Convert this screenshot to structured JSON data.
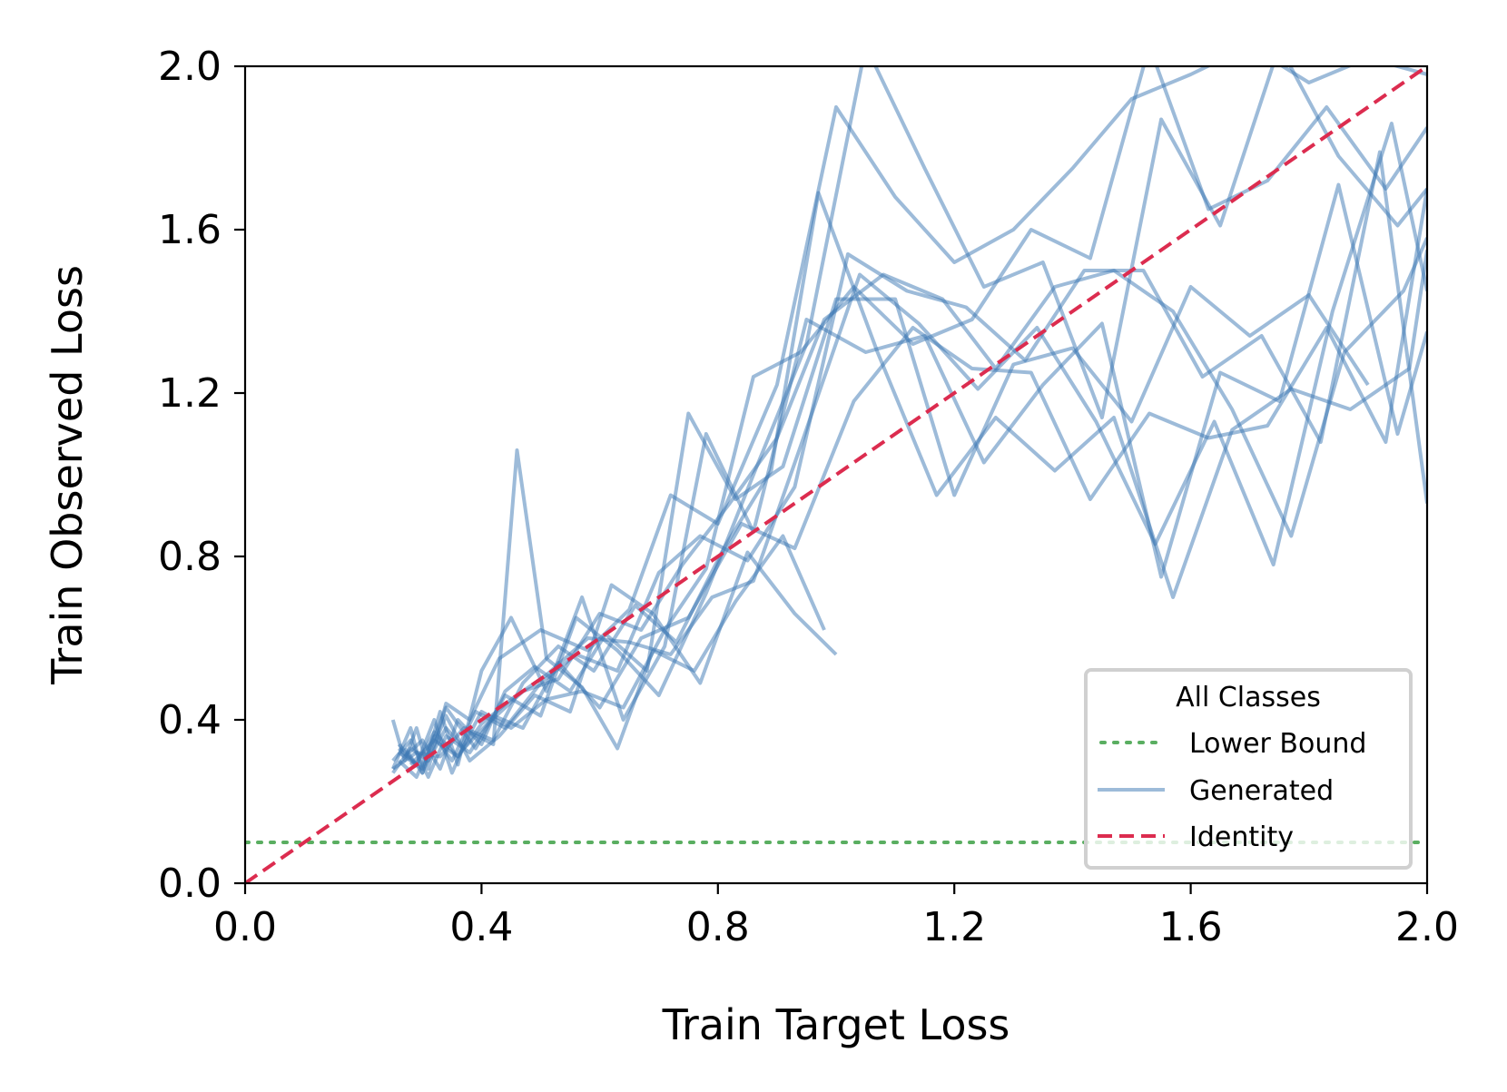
{
  "chart_data": {
    "type": "line",
    "title": "",
    "xlabel": "Train Target Loss",
    "ylabel": "Train Observed Loss",
    "xlim": [
      0,
      2
    ],
    "ylim": [
      0,
      2
    ],
    "xticks": [
      "0.0",
      "0.4",
      "0.8",
      "1.2",
      "1.6",
      "2.0"
    ],
    "yticks": [
      "0.0",
      "0.4",
      "0.8",
      "1.2",
      "1.6",
      "2.0"
    ],
    "xtick_values": [
      0,
      0.4,
      0.8,
      1.2,
      1.6,
      2.0
    ],
    "ytick_values": [
      0,
      0.4,
      0.8,
      1.2,
      1.6,
      2.0
    ],
    "grid": false,
    "legend": {
      "title": "All Classes",
      "placement": "lower-right",
      "entries": [
        {
          "label": "Lower Bound",
          "style": "dotted",
          "color": "#5aae61"
        },
        {
          "label": "Generated",
          "style": "solid",
          "color": "#8fb3d6"
        },
        {
          "label": "Identity",
          "style": "dashed",
          "color": "#dc2c4f"
        }
      ]
    },
    "colors": {
      "generated": "#3c78b4",
      "identity": "#dc2c4f",
      "lower_bound": "#5aae61"
    },
    "lower_bound": 0.1,
    "identity": {
      "x": [
        0,
        2
      ],
      "y": [
        0,
        2
      ]
    },
    "series": [
      {
        "x": [
          0.25,
          0.27,
          0.29,
          0.31,
          0.34,
          0.38,
          0.43,
          0.5,
          0.58,
          0.65,
          0.72,
          0.8,
          0.9,
          1.0,
          1.1,
          1.2,
          1.3,
          1.4,
          1.5,
          1.6,
          1.7,
          1.8,
          1.9,
          2.0
        ],
        "y": [
          0.4,
          0.3,
          0.38,
          0.28,
          0.44,
          0.4,
          0.55,
          0.62,
          0.57,
          0.67,
          0.95,
          0.88,
          1.22,
          1.9,
          1.68,
          1.52,
          1.6,
          1.75,
          1.92,
          1.98,
          2.05,
          1.96,
          2.02,
          1.98
        ]
      },
      {
        "x": [
          0.25,
          0.28,
          0.31,
          0.34,
          0.37,
          0.41,
          0.47,
          0.53,
          0.6,
          0.67,
          0.74,
          0.82,
          0.9,
          0.98,
          1.08,
          1.18,
          1.27,
          1.37,
          1.47,
          1.57,
          1.67,
          1.77,
          1.86,
          1.96,
          2.0
        ],
        "y": [
          0.27,
          0.33,
          0.3,
          0.38,
          0.33,
          0.39,
          0.47,
          0.5,
          0.66,
          0.62,
          0.78,
          0.93,
          1.09,
          1.38,
          1.49,
          1.43,
          1.26,
          1.46,
          1.5,
          1.4,
          1.16,
          0.85,
          1.3,
          1.45,
          1.58
        ]
      },
      {
        "x": [
          0.26,
          0.29,
          0.32,
          0.35,
          0.39,
          0.44,
          0.5,
          0.56,
          0.63,
          0.7,
          0.77,
          0.85,
          0.93,
          1.02,
          1.12,
          1.22,
          1.32,
          1.42,
          1.52,
          1.62,
          1.72,
          1.82,
          1.92,
          2.0
        ],
        "y": [
          0.3,
          0.26,
          0.36,
          0.3,
          0.42,
          0.38,
          0.49,
          0.56,
          0.52,
          0.76,
          0.85,
          0.79,
          0.97,
          1.54,
          1.45,
          1.41,
          1.28,
          1.5,
          1.5,
          1.24,
          1.34,
          1.08,
          1.79,
          0.93
        ]
      },
      {
        "x": [
          0.25,
          0.28,
          0.3,
          0.33,
          0.36,
          0.4,
          0.45,
          0.51,
          0.57,
          0.64,
          0.71,
          0.78,
          0.86,
          0.95,
          1.05,
          1.15,
          1.25,
          1.35,
          1.45,
          1.55,
          1.65,
          1.75,
          1.85,
          1.95,
          2.0
        ],
        "y": [
          0.28,
          0.38,
          0.27,
          0.42,
          0.29,
          0.52,
          0.65,
          0.47,
          0.7,
          0.4,
          0.58,
          1.1,
          0.86,
          1.38,
          1.3,
          1.34,
          1.03,
          1.22,
          1.37,
          0.75,
          1.25,
          1.18,
          1.71,
          1.1,
          1.35
        ]
      },
      {
        "x": [
          0.26,
          0.29,
          0.32,
          0.36,
          0.4,
          0.45,
          0.51,
          0.58,
          0.65,
          0.72,
          0.79,
          0.86,
          0.94,
          1.04,
          1.14,
          1.24,
          1.34,
          1.44,
          1.54,
          1.64,
          1.74,
          1.84,
          1.94,
          2.0
        ],
        "y": [
          0.33,
          0.29,
          0.37,
          0.31,
          0.39,
          0.45,
          0.51,
          0.6,
          0.59,
          0.56,
          0.7,
          0.74,
          1.07,
          1.49,
          1.37,
          1.21,
          1.36,
          1.13,
          0.83,
          1.13,
          0.78,
          1.4,
          1.86,
          1.45
        ]
      },
      {
        "x": [
          0.27,
          0.3,
          0.33,
          0.36,
          0.4,
          0.44,
          0.49,
          0.55,
          0.61,
          0.68,
          0.75,
          0.83,
          0.91,
          1.0,
          1.1,
          1.2,
          1.3,
          1.4,
          1.5,
          1.6,
          1.7,
          1.8,
          1.9
        ],
        "y": [
          0.31,
          0.35,
          0.28,
          0.4,
          0.34,
          0.47,
          0.53,
          0.47,
          0.61,
          0.52,
          1.15,
          0.94,
          1.02,
          1.43,
          1.43,
          0.95,
          1.27,
          1.31,
          1.13,
          1.46,
          1.34,
          1.44,
          1.22
        ]
      },
      {
        "x": [
          0.25,
          0.28,
          0.31,
          0.34,
          0.38,
          0.42,
          0.47,
          0.53,
          0.6,
          0.67,
          0.75,
          0.84,
          0.93,
          1.03,
          1.13,
          1.23,
          1.33,
          1.43,
          1.53,
          1.63,
          1.73,
          1.83,
          1.93,
          2.0
        ],
        "y": [
          0.3,
          0.35,
          0.26,
          0.36,
          0.32,
          0.41,
          0.38,
          0.54,
          0.43,
          0.6,
          0.65,
          0.88,
          0.82,
          1.18,
          1.36,
          1.26,
          1.25,
          0.94,
          1.15,
          1.09,
          1.12,
          1.36,
          1.08,
          1.7
        ]
      },
      {
        "x": [
          0.26,
          0.29,
          0.32,
          0.35,
          0.38,
          0.42,
          0.46,
          0.51,
          0.57,
          0.63,
          0.69,
          0.76,
          0.83,
          0.91,
          0.98
        ],
        "y": [
          0.34,
          0.29,
          0.4,
          0.27,
          0.37,
          0.34,
          1.06,
          0.55,
          0.48,
          0.33,
          0.57,
          0.52,
          0.69,
          0.85,
          0.62
        ]
      },
      {
        "x": [
          0.27,
          0.3,
          0.34,
          0.38,
          0.43,
          0.49,
          0.55,
          0.62,
          0.69,
          0.77,
          0.85,
          0.93,
          1.0
        ],
        "y": [
          0.33,
          0.27,
          0.41,
          0.3,
          0.36,
          0.46,
          0.42,
          0.73,
          0.66,
          0.49,
          0.81,
          0.66,
          0.56
        ]
      },
      {
        "x": [
          0.25,
          0.29,
          0.33,
          0.37,
          0.42,
          0.47,
          0.53,
          0.59,
          0.66,
          0.73,
          0.81,
          0.89,
          0.97,
          1.07,
          1.17,
          1.27,
          1.37,
          1.47,
          1.57,
          1.67,
          1.77,
          1.87,
          1.97,
          2.0
        ],
        "y": [
          0.28,
          0.32,
          0.31,
          0.38,
          0.35,
          0.49,
          0.58,
          0.52,
          0.68,
          0.59,
          0.82,
          1.01,
          1.69,
          1.3,
          0.95,
          1.14,
          1.01,
          1.14,
          0.7,
          1.11,
          1.21,
          1.16,
          1.26,
          1.55
        ]
      },
      {
        "x": [
          0.26,
          0.3,
          0.34,
          0.39,
          0.44,
          0.5,
          0.56,
          0.63,
          0.7,
          0.78,
          0.86,
          0.95,
          1.05,
          1.15,
          1.25,
          1.35,
          1.45,
          1.55,
          1.65,
          1.75,
          1.85,
          1.95,
          2.0
        ],
        "y": [
          0.32,
          0.28,
          0.43,
          0.33,
          0.46,
          0.41,
          0.65,
          0.57,
          0.46,
          0.71,
          1.0,
          1.32,
          2.05,
          1.75,
          1.46,
          1.52,
          1.14,
          1.87,
          1.61,
          2.05,
          1.78,
          1.61,
          1.7
        ]
      },
      {
        "x": [
          0.28,
          0.32,
          0.36,
          0.4,
          0.45,
          0.51,
          0.57,
          0.64,
          0.71,
          0.78,
          0.86,
          0.94,
          1.03,
          1.13,
          1.23,
          1.33,
          1.43,
          1.53,
          1.63,
          1.73,
          1.83,
          1.93,
          2.0
        ],
        "y": [
          0.29,
          0.35,
          0.31,
          0.42,
          0.38,
          0.45,
          0.47,
          0.43,
          0.62,
          0.77,
          1.24,
          1.3,
          1.46,
          1.32,
          1.38,
          1.6,
          1.53,
          2.05,
          1.65,
          1.72,
          1.9,
          1.7,
          1.85
        ]
      }
    ]
  }
}
